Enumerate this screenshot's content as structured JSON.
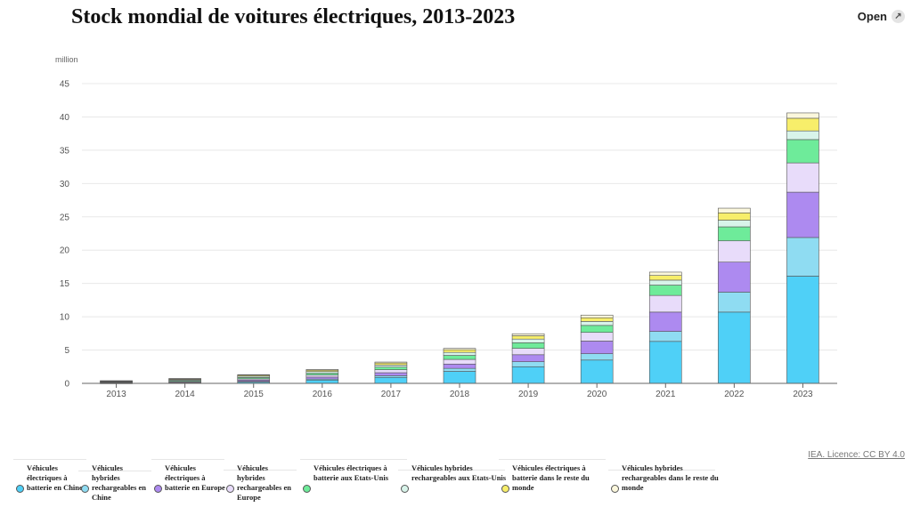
{
  "header": {
    "title": "Stock mondial de voitures électriques, 2013-2023",
    "open_label": "Open"
  },
  "source": "IEA. Licence: CC BY 4.0",
  "chart_data": {
    "type": "bar",
    "stacked": true,
    "title": "Stock mondial de voitures électriques, 2013-2023",
    "ylabel": "million",
    "xlabel": "",
    "ylim": [
      0,
      45
    ],
    "yticks": [
      0,
      5,
      10,
      15,
      20,
      25,
      30,
      35,
      40,
      45
    ],
    "grid": true,
    "legend_position": "bottom",
    "categories": [
      "2013",
      "2014",
      "2015",
      "2016",
      "2017",
      "2018",
      "2019",
      "2020",
      "2021",
      "2022",
      "2023"
    ],
    "series": [
      {
        "name": "Véhicules électriques à batterie en Chine",
        "color": "#4fd0f7",
        "values": [
          0.02,
          0.08,
          0.2,
          0.5,
          0.9,
          1.8,
          2.5,
          3.5,
          6.3,
          10.7,
          16.1
        ]
      },
      {
        "name": "Véhicules hybrides rechargeables en Chine",
        "color": "#8fdcf2",
        "values": [
          0.01,
          0.03,
          0.1,
          0.15,
          0.25,
          0.45,
          0.75,
          0.95,
          1.5,
          3.0,
          5.8
        ]
      },
      {
        "name": "Véhicules électriques à batterie en Europe",
        "color": "#ad8af0",
        "values": [
          0.05,
          0.1,
          0.2,
          0.3,
          0.45,
          0.65,
          1.05,
          1.9,
          2.9,
          4.5,
          6.8
        ]
      },
      {
        "name": "Véhicules hybrides rechargeables en Europe",
        "color": "#e8dcfa",
        "values": [
          0.05,
          0.1,
          0.18,
          0.3,
          0.45,
          0.7,
          0.95,
          1.3,
          2.5,
          3.2,
          4.4
        ]
      },
      {
        "name": "Véhicules électriques à batterie aux Etats-Unis",
        "color": "#6eeb9a",
        "values": [
          0.08,
          0.14,
          0.2,
          0.28,
          0.4,
          0.6,
          0.85,
          1.05,
          1.55,
          2.1,
          3.5
        ]
      },
      {
        "name": "Véhicules hybrides rechargeables aux Etats-Unis",
        "color": "#d8f4ea",
        "values": [
          0.08,
          0.11,
          0.2,
          0.25,
          0.3,
          0.45,
          0.55,
          0.6,
          0.75,
          1.0,
          1.3
        ]
      },
      {
        "name": "Véhicules électriques à batterie dans le reste du monde",
        "color": "#f7ee6a",
        "values": [
          0.08,
          0.12,
          0.15,
          0.2,
          0.3,
          0.4,
          0.5,
          0.55,
          0.7,
          1.1,
          1.9
        ]
      },
      {
        "name": "Véhicules hybrides rechargeables dans le reste du monde",
        "color": "#fbf7dc",
        "values": [
          0.03,
          0.05,
          0.07,
          0.1,
          0.15,
          0.2,
          0.3,
          0.4,
          0.5,
          0.7,
          0.8
        ]
      }
    ]
  }
}
